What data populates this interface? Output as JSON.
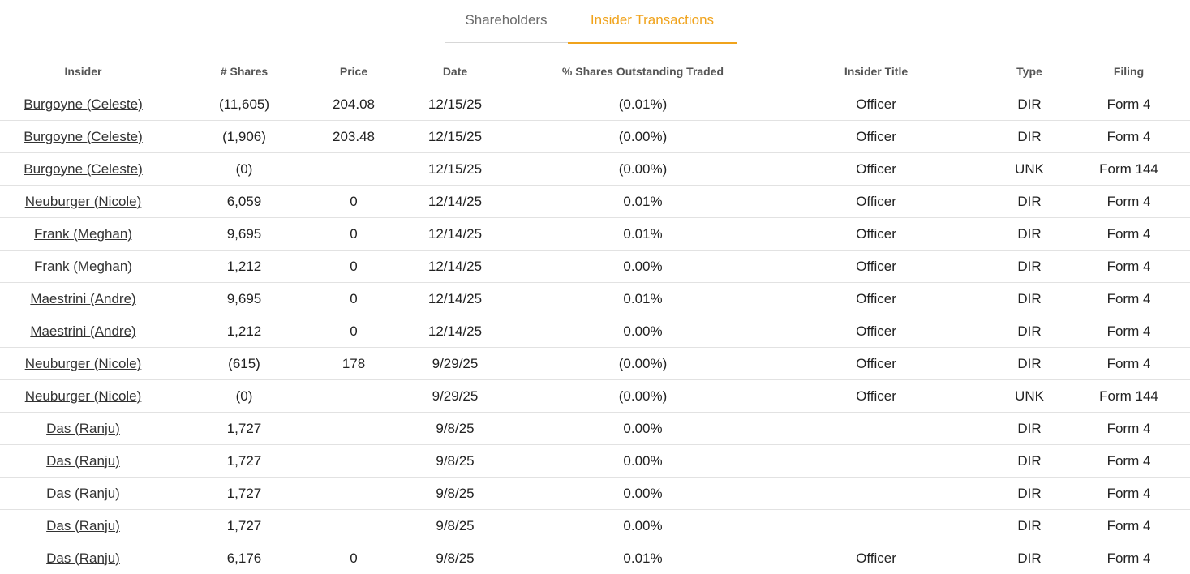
{
  "tabs": [
    {
      "label": "Shareholders",
      "active": false
    },
    {
      "label": "Insider Transactions",
      "active": true
    }
  ],
  "colors": {
    "accent": "#f0a31c",
    "negative": "#e0483a",
    "divider": "#e2e2e2"
  },
  "columns": [
    "Insider",
    "# Shares",
    "Price",
    "Date",
    "% Shares Outstanding Traded",
    "Insider Title",
    "Type",
    "Filing"
  ],
  "rows": [
    {
      "insider": "Burgoyne (Celeste)",
      "shares": "(11,605)",
      "price": "204.08",
      "date": "12/15/25",
      "pct": "(0.01%)",
      "title": "Officer",
      "type": "DIR",
      "filing": "Form 4",
      "negative": true
    },
    {
      "insider": "Burgoyne (Celeste)",
      "shares": "(1,906)",
      "price": "203.48",
      "date": "12/15/25",
      "pct": "(0.00%)",
      "title": "Officer",
      "type": "DIR",
      "filing": "Form 4",
      "negative": true
    },
    {
      "insider": "Burgoyne (Celeste)",
      "shares": "(0)",
      "price": "",
      "date": "12/15/25",
      "pct": "(0.00%)",
      "title": "Officer",
      "type": "UNK",
      "filing": "Form 144",
      "negative": false
    },
    {
      "insider": "Neuburger (Nicole)",
      "shares": "6,059",
      "price": "0",
      "date": "12/14/25",
      "pct": "0.01%",
      "title": "Officer",
      "type": "DIR",
      "filing": "Form 4",
      "negative": false
    },
    {
      "insider": "Frank (Meghan)",
      "shares": "9,695",
      "price": "0",
      "date": "12/14/25",
      "pct": "0.01%",
      "title": "Officer",
      "type": "DIR",
      "filing": "Form 4",
      "negative": false
    },
    {
      "insider": "Frank (Meghan)",
      "shares": "1,212",
      "price": "0",
      "date": "12/14/25",
      "pct": "0.00%",
      "title": "Officer",
      "type": "DIR",
      "filing": "Form 4",
      "negative": false
    },
    {
      "insider": "Maestrini (Andre)",
      "shares": "9,695",
      "price": "0",
      "date": "12/14/25",
      "pct": "0.01%",
      "title": "Officer",
      "type": "DIR",
      "filing": "Form 4",
      "negative": false
    },
    {
      "insider": "Maestrini (Andre)",
      "shares": "1,212",
      "price": "0",
      "date": "12/14/25",
      "pct": "0.00%",
      "title": "Officer",
      "type": "DIR",
      "filing": "Form 4",
      "negative": false
    },
    {
      "insider": "Neuburger (Nicole)",
      "shares": "(615)",
      "price": "178",
      "date": "9/29/25",
      "pct": "(0.00%)",
      "title": "Officer",
      "type": "DIR",
      "filing": "Form 4",
      "negative": true
    },
    {
      "insider": "Neuburger (Nicole)",
      "shares": "(0)",
      "price": "",
      "date": "9/29/25",
      "pct": "(0.00%)",
      "title": "Officer",
      "type": "UNK",
      "filing": "Form 144",
      "negative": false
    },
    {
      "insider": "Das (Ranju)",
      "shares": "1,727",
      "price": "",
      "date": "9/8/25",
      "pct": "0.00%",
      "title": "",
      "type": "DIR",
      "filing": "Form 4",
      "negative": false
    },
    {
      "insider": "Das (Ranju)",
      "shares": "1,727",
      "price": "",
      "date": "9/8/25",
      "pct": "0.00%",
      "title": "",
      "type": "DIR",
      "filing": "Form 4",
      "negative": false
    },
    {
      "insider": "Das (Ranju)",
      "shares": "1,727",
      "price": "",
      "date": "9/8/25",
      "pct": "0.00%",
      "title": "",
      "type": "DIR",
      "filing": "Form 4",
      "negative": false
    },
    {
      "insider": "Das (Ranju)",
      "shares": "1,727",
      "price": "",
      "date": "9/8/25",
      "pct": "0.00%",
      "title": "",
      "type": "DIR",
      "filing": "Form 4",
      "negative": false
    },
    {
      "insider": "Das (Ranju)",
      "shares": "6,176",
      "price": "0",
      "date": "9/8/25",
      "pct": "0.01%",
      "title": "Officer",
      "type": "DIR",
      "filing": "Form 4",
      "negative": false
    }
  ]
}
